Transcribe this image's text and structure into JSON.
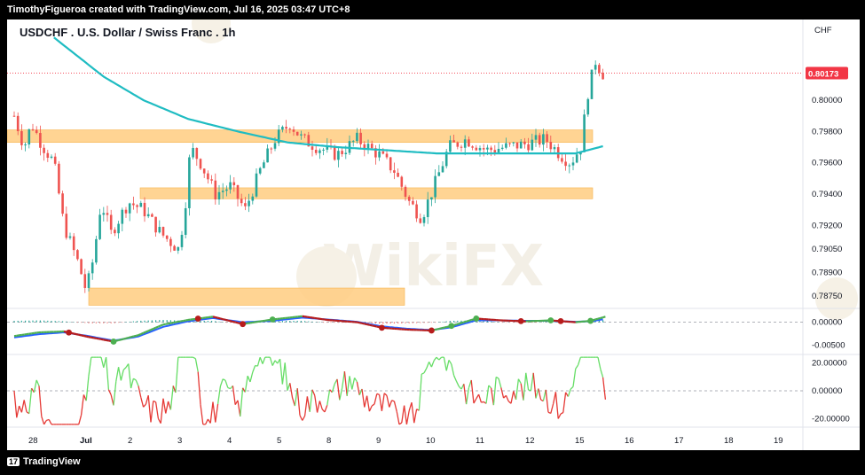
{
  "header": {
    "credit": "TimothyFigueroa created with TradingView.com, Jul 16, 2025 03:47 UTC+8"
  },
  "footer": {
    "brand": "TradingView"
  },
  "watermark": "WikiFX",
  "chart_data": {
    "type": "candlestick",
    "title": "USDCHF . U.S. Dollar / Swiss Franc . 1h",
    "currency": "CHF",
    "last_price": "0.80173",
    "last_price_value": 0.80173,
    "x_tick_labels": [
      "28",
      "Jul",
      "2",
      "3",
      "4",
      "5",
      "8",
      "9",
      "10",
      "11",
      "12",
      "15",
      "16",
      "17",
      "18",
      "19"
    ],
    "price_axis": {
      "ticks": [
        "0.80000",
        "0.79800",
        "0.79600",
        "0.79400",
        "0.79200",
        "0.79050",
        "0.78900",
        "0.78750"
      ],
      "ylim": [
        0.7867,
        0.803
      ]
    },
    "support_resistance_zones": [
      {
        "from": 0.7973,
        "to": 0.7981,
        "start": "28",
        "end": "15"
      },
      {
        "from": 0.7937,
        "to": 0.7944,
        "start": "2",
        "end": "15"
      },
      {
        "from": 0.7869,
        "to": 0.788,
        "start": "Jul",
        "end": "10"
      }
    ],
    "price_path": [
      [
        0,
        0.799
      ],
      [
        0.2,
        0.797
      ],
      [
        0.35,
        0.7985
      ],
      [
        0.55,
        0.7972
      ],
      [
        0.8,
        0.796
      ],
      [
        1.0,
        0.792
      ],
      [
        1.3,
        0.7895
      ],
      [
        1.45,
        0.7878
      ],
      [
        1.6,
        0.79
      ],
      [
        1.75,
        0.7935
      ],
      [
        1.95,
        0.7915
      ],
      [
        2.3,
        0.7935
      ],
      [
        2.6,
        0.793
      ],
      [
        2.95,
        0.7915
      ],
      [
        3.3,
        0.7905
      ],
      [
        3.42,
        0.7925
      ],
      [
        3.55,
        0.797
      ],
      [
        3.75,
        0.796
      ],
      [
        4.05,
        0.794
      ],
      [
        4.35,
        0.7945
      ],
      [
        4.65,
        0.793
      ],
      [
        4.95,
        0.7955
      ],
      [
        5.25,
        0.7975
      ],
      [
        5.55,
        0.7985
      ],
      [
        5.8,
        0.7975
      ],
      [
        6.1,
        0.797
      ],
      [
        6.5,
        0.7965
      ],
      [
        6.9,
        0.7975
      ],
      [
        7.35,
        0.7965
      ],
      [
        7.65,
        0.7955
      ],
      [
        7.95,
        0.7935
      ],
      [
        8.2,
        0.7925
      ],
      [
        8.45,
        0.7945
      ],
      [
        8.75,
        0.797
      ],
      [
        9.1,
        0.7975
      ],
      [
        9.5,
        0.7968
      ],
      [
        9.9,
        0.797
      ],
      [
        10.3,
        0.7972
      ],
      [
        10.7,
        0.7975
      ],
      [
        11.0,
        0.7965
      ],
      [
        11.2,
        0.796
      ],
      [
        11.4,
        0.797
      ],
      [
        11.55,
        0.8005
      ],
      [
        11.7,
        0.8025
      ],
      [
        11.85,
        0.8017
      ]
    ],
    "moving_average": [
      [
        0.8,
        0.804
      ],
      [
        1.8,
        0.8015
      ],
      [
        2.6,
        0.8
      ],
      [
        3.5,
        0.7988
      ],
      [
        4.5,
        0.798
      ],
      [
        5.5,
        0.7973
      ],
      [
        6.5,
        0.797
      ],
      [
        7.5,
        0.7968
      ],
      [
        8.5,
        0.7966
      ],
      [
        9.5,
        0.7966
      ],
      [
        10.5,
        0.7966
      ],
      [
        11.3,
        0.7966
      ],
      [
        11.9,
        0.7971
      ]
    ],
    "macd_panel": {
      "ticks": [
        "0.00000",
        "-0.00500"
      ],
      "ylim": [
        -0.007,
        0.003
      ],
      "macd": [
        [
          0,
          -0.003
        ],
        [
          0.5,
          -0.0022
        ],
        [
          1.0,
          -0.002
        ],
        [
          1.5,
          -0.0032
        ],
        [
          2.0,
          -0.0042
        ],
        [
          2.5,
          -0.0028
        ],
        [
          3.0,
          -0.0005
        ],
        [
          3.5,
          0.0005
        ],
        [
          4.0,
          0.0012
        ],
        [
          4.6,
          -0.0004
        ],
        [
          5.2,
          0.0006
        ],
        [
          5.8,
          0.0013
        ],
        [
          6.3,
          0.0005
        ],
        [
          6.9,
          0.0
        ],
        [
          7.4,
          -0.0012
        ],
        [
          7.9,
          -0.0016
        ],
        [
          8.4,
          -0.0018
        ],
        [
          8.8,
          -0.0008
        ],
        [
          9.3,
          0.0008
        ],
        [
          9.8,
          0.0004
        ],
        [
          10.3,
          0.0002
        ],
        [
          10.8,
          0.0004
        ],
        [
          11.3,
          0.0
        ],
        [
          11.6,
          0.0003
        ],
        [
          11.9,
          0.0012
        ]
      ],
      "signal": [
        [
          0,
          -0.0033
        ],
        [
          0.5,
          -0.0026
        ],
        [
          1.0,
          -0.0022
        ],
        [
          1.5,
          -0.003
        ],
        [
          2.0,
          -0.004
        ],
        [
          2.5,
          -0.0031
        ],
        [
          3.0,
          -0.001
        ],
        [
          3.5,
          0.0002
        ],
        [
          4.0,
          0.0009
        ],
        [
          4.6,
          0.0
        ],
        [
          5.2,
          0.0003
        ],
        [
          5.8,
          0.001
        ],
        [
          6.3,
          0.0006
        ],
        [
          6.9,
          0.0001
        ],
        [
          7.4,
          -0.0009
        ],
        [
          7.9,
          -0.0014
        ],
        [
          8.4,
          -0.0017
        ],
        [
          8.8,
          -0.0011
        ],
        [
          9.3,
          0.0004
        ],
        [
          9.8,
          0.0004
        ],
        [
          10.3,
          0.0003
        ],
        [
          10.8,
          0.0003
        ],
        [
          11.3,
          0.0001
        ],
        [
          11.6,
          0.0002
        ],
        [
          11.9,
          0.0007
        ]
      ],
      "signal_up_color": "#4caf50",
      "signal_down_color": "#b71c1c",
      "cross_up_points": [
        2.0,
        5.2,
        8.8,
        9.3,
        10.8,
        11.6
      ],
      "cross_down_points": [
        1.1,
        3.7,
        4.6,
        7.4,
        8.4,
        10.2,
        11.0
      ]
    },
    "oscillator_panel": {
      "ticks": [
        "20.00000",
        "0.00000",
        "-20.00000"
      ],
      "ylim": [
        -26,
        26
      ],
      "up_color": "#66dd66",
      "down_color": "#e53935"
    }
  }
}
